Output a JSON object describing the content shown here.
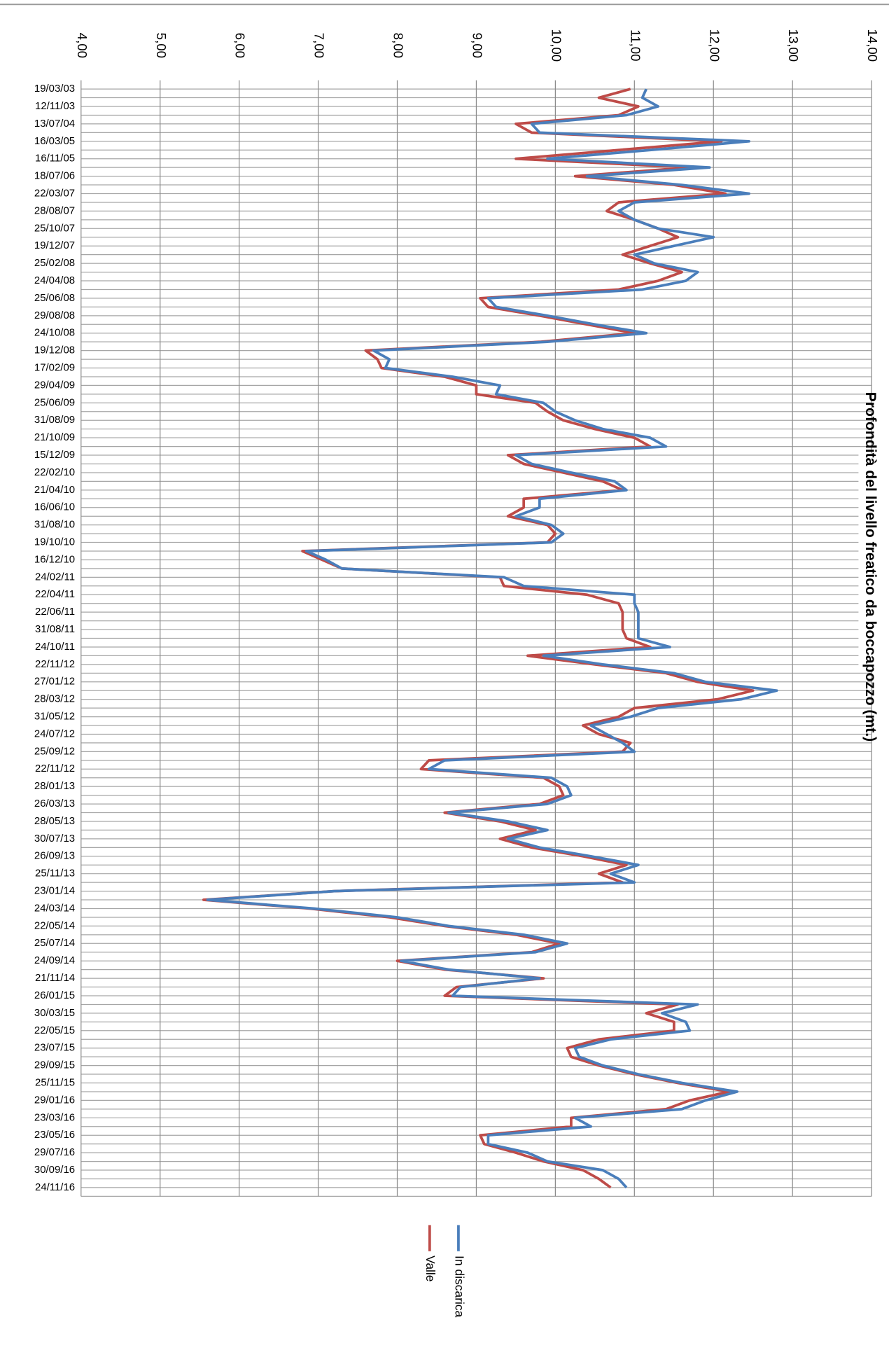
{
  "chart_data": {
    "type": "line",
    "orientation": "rotated",
    "title": "Profondità del livello freatico da boccapozzo (mt.)",
    "categories": [
      "19/03/03",
      null,
      "12/11/03",
      null,
      "13/07/04",
      null,
      "16/03/05",
      null,
      "16/11/05",
      null,
      "18/07/06",
      null,
      "22/03/07",
      null,
      "28/08/07",
      null,
      "25/10/07",
      null,
      "19/12/07",
      null,
      "25/02/08",
      null,
      "24/04/08",
      null,
      "25/06/08",
      null,
      "29/08/08",
      null,
      "24/10/08",
      null,
      "19/12/08",
      null,
      "17/02/09",
      null,
      "29/04/09",
      null,
      "25/06/09",
      null,
      "31/08/09",
      null,
      "21/10/09",
      null,
      "15/12/09",
      null,
      "22/02/10",
      null,
      "21/04/10",
      null,
      "16/06/10",
      null,
      "31/08/10",
      null,
      "19/10/10",
      null,
      "16/12/10",
      null,
      "24/02/11",
      null,
      "22/04/11",
      null,
      "22/06/11",
      null,
      "31/08/11",
      null,
      "24/10/11",
      null,
      "22/11/12",
      null,
      "27/01/12",
      null,
      "28/03/12",
      null,
      "31/05/12",
      null,
      "24/07/12",
      null,
      "25/09/12",
      null,
      "22/11/12",
      null,
      "28/01/13",
      null,
      "26/03/13",
      null,
      "28/05/13",
      null,
      "30/07/13",
      null,
      "26/09/13",
      null,
      "25/11/13",
      null,
      "23/01/14",
      null,
      "24/03/14",
      null,
      "22/05/14",
      null,
      "25/07/14",
      null,
      "24/09/14",
      null,
      "21/11/14",
      null,
      "26/01/15",
      null,
      "30/03/15",
      null,
      "22/05/15",
      null,
      "23/07/15",
      null,
      "29/09/15",
      null,
      "25/11/15",
      null,
      "29/01/16",
      null,
      "23/03/16",
      null,
      "23/05/16",
      null,
      "29/07/16",
      null,
      "30/09/16",
      null,
      "24/11/16"
    ],
    "series": [
      {
        "name": "In discarica",
        "color": "#4a7ebb",
        "values": [
          11.15,
          11.1,
          11.3,
          10.9,
          9.7,
          9.8,
          12.45,
          11.2,
          9.9,
          11.95,
          10.4,
          11.6,
          12.45,
          11.0,
          10.8,
          11.0,
          11.3,
          12.0,
          11.5,
          11.0,
          11.25,
          11.8,
          11.65,
          11.1,
          9.15,
          9.25,
          9.9,
          10.5,
          11.15,
          9.9,
          7.7,
          7.9,
          7.85,
          8.7,
          9.3,
          9.25,
          9.85,
          10.0,
          10.25,
          10.6,
          11.2,
          11.4,
          9.5,
          9.7,
          10.2,
          10.75,
          10.9,
          9.8,
          9.8,
          9.5,
          9.95,
          10.1,
          9.95,
          6.85,
          7.1,
          7.3,
          9.35,
          9.6,
          11.0,
          11.0,
          11.05,
          11.05,
          11.05,
          11.05,
          11.45,
          9.85,
          10.6,
          11.5,
          11.9,
          12.8,
          12.35,
          11.3,
          10.95,
          10.45,
          10.65,
          10.85,
          11.0,
          8.6,
          8.4,
          9.95,
          10.15,
          10.2,
          9.9,
          8.65,
          9.4,
          9.9,
          9.4,
          9.8,
          10.45,
          11.05,
          10.7,
          11.0,
          7.2,
          5.6,
          6.95,
          8.0,
          8.65,
          9.6,
          10.15,
          9.75,
          8.05,
          8.65,
          9.8,
          8.8,
          8.7,
          11.8,
          11.35,
          11.65,
          11.7,
          10.7,
          10.25,
          10.3,
          10.6,
          11.05,
          11.6,
          12.3,
          11.9,
          11.6,
          10.25,
          10.45,
          9.15,
          9.15,
          9.65,
          9.9,
          10.6,
          10.8,
          10.9
        ]
      },
      {
        "name": "Valle",
        "color": "#be4b48",
        "values": [
          10.95,
          10.55,
          11.05,
          10.8,
          9.5,
          9.7,
          12.1,
          10.8,
          9.5,
          11.7,
          10.25,
          11.5,
          12.15,
          10.8,
          10.65,
          11.0,
          11.3,
          11.55,
          11.2,
          10.85,
          11.2,
          11.6,
          11.3,
          10.8,
          9.05,
          9.15,
          9.8,
          10.4,
          11.0,
          9.8,
          7.6,
          7.75,
          7.8,
          8.6,
          9.0,
          9.0,
          9.75,
          9.9,
          10.1,
          10.5,
          11.0,
          11.2,
          9.4,
          9.6,
          10.1,
          10.6,
          10.85,
          9.6,
          9.6,
          9.4,
          9.9,
          10.0,
          9.9,
          6.8,
          7.05,
          7.3,
          9.3,
          9.35,
          10.4,
          10.8,
          10.85,
          10.85,
          10.85,
          10.9,
          11.2,
          9.65,
          10.5,
          11.4,
          11.8,
          12.5,
          12.05,
          11.0,
          10.8,
          10.35,
          10.55,
          10.95,
          10.85,
          8.4,
          8.3,
          9.85,
          10.05,
          10.1,
          9.8,
          8.6,
          9.3,
          9.75,
          9.3,
          9.7,
          10.35,
          10.9,
          10.55,
          10.85,
          7.2,
          5.55,
          6.9,
          7.9,
          8.6,
          9.5,
          10.05,
          9.7,
          8.0,
          8.6,
          9.85,
          8.75,
          8.6,
          11.55,
          11.15,
          11.5,
          11.5,
          10.55,
          10.15,
          10.2,
          10.55,
          11.0,
          11.55,
          12.2,
          11.7,
          11.4,
          10.2,
          10.2,
          9.05,
          9.1,
          9.5,
          9.85,
          10.35,
          10.55,
          10.7
        ]
      }
    ],
    "ylim": [
      4,
      14
    ],
    "yticks": [
      {
        "value": 4,
        "label": "4,00"
      },
      {
        "value": 5,
        "label": "5,00"
      },
      {
        "value": 6,
        "label": "6,00"
      },
      {
        "value": 7,
        "label": "7,00"
      },
      {
        "value": 8,
        "label": "8,00"
      },
      {
        "value": 9,
        "label": "9,00"
      },
      {
        "value": 10,
        "label": "10,00"
      },
      {
        "value": 11,
        "label": "11,00"
      },
      {
        "value": 12,
        "label": "12,00"
      },
      {
        "value": 13,
        "label": "13,00"
      },
      {
        "value": 14,
        "label": "14,00"
      }
    ],
    "grid": true,
    "legend": "bottom"
  }
}
